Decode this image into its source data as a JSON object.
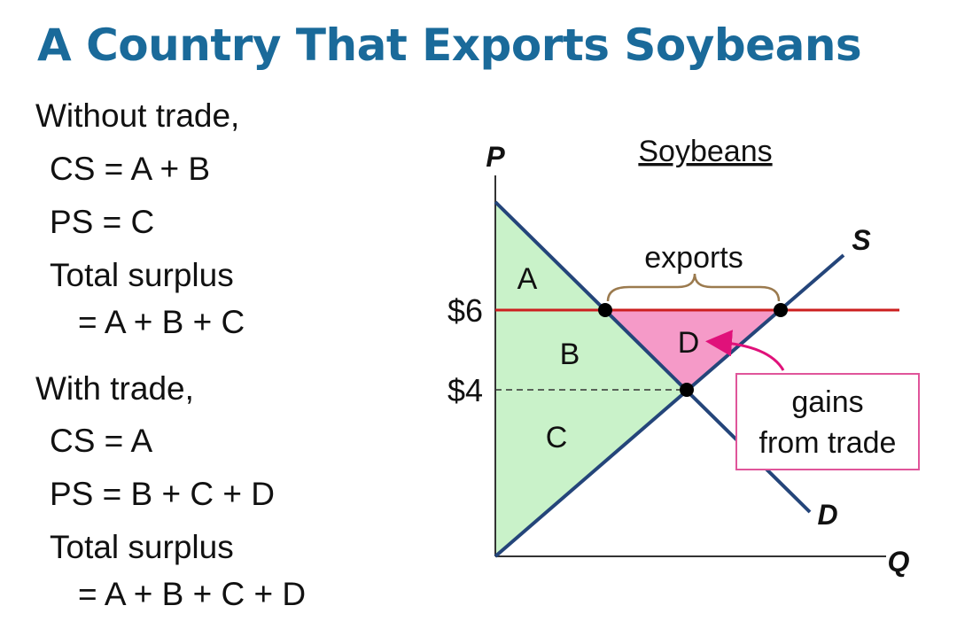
{
  "title": "A Country That Exports Soybeans",
  "without_trade": {
    "heading": "Without trade,",
    "cs": "CS = A + B",
    "ps": "PS = C",
    "ts_label": "Total surplus",
    "ts_value": "= A + B + C"
  },
  "with_trade": {
    "heading": "With trade,",
    "cs": "CS = A",
    "ps": "PS = B + C + D",
    "ts_label": "Total surplus",
    "ts_value": "= A + B + C + D"
  },
  "graph": {
    "market_title": "Soybeans",
    "y_axis_label": "P",
    "x_axis_label": "Q",
    "supply_label": "S",
    "demand_label": "D",
    "price_world": "$6",
    "price_domestic": "$4",
    "area_a": "A",
    "area_b": "B",
    "area_c": "C",
    "area_d": "D",
    "exports_label": "exports",
    "gains_line1": "gains",
    "gains_line2": "from trade"
  },
  "colors": {
    "title": "#1a6a9a",
    "curve": "#24457a",
    "surplus_green": "#c9f2c9",
    "gains_pink": "#f59ac8",
    "world_price_line": "#cc1f1f",
    "brace": "#9b7a4e",
    "callout_border": "#e0559a",
    "callout_arrow": "#e0117a"
  }
}
